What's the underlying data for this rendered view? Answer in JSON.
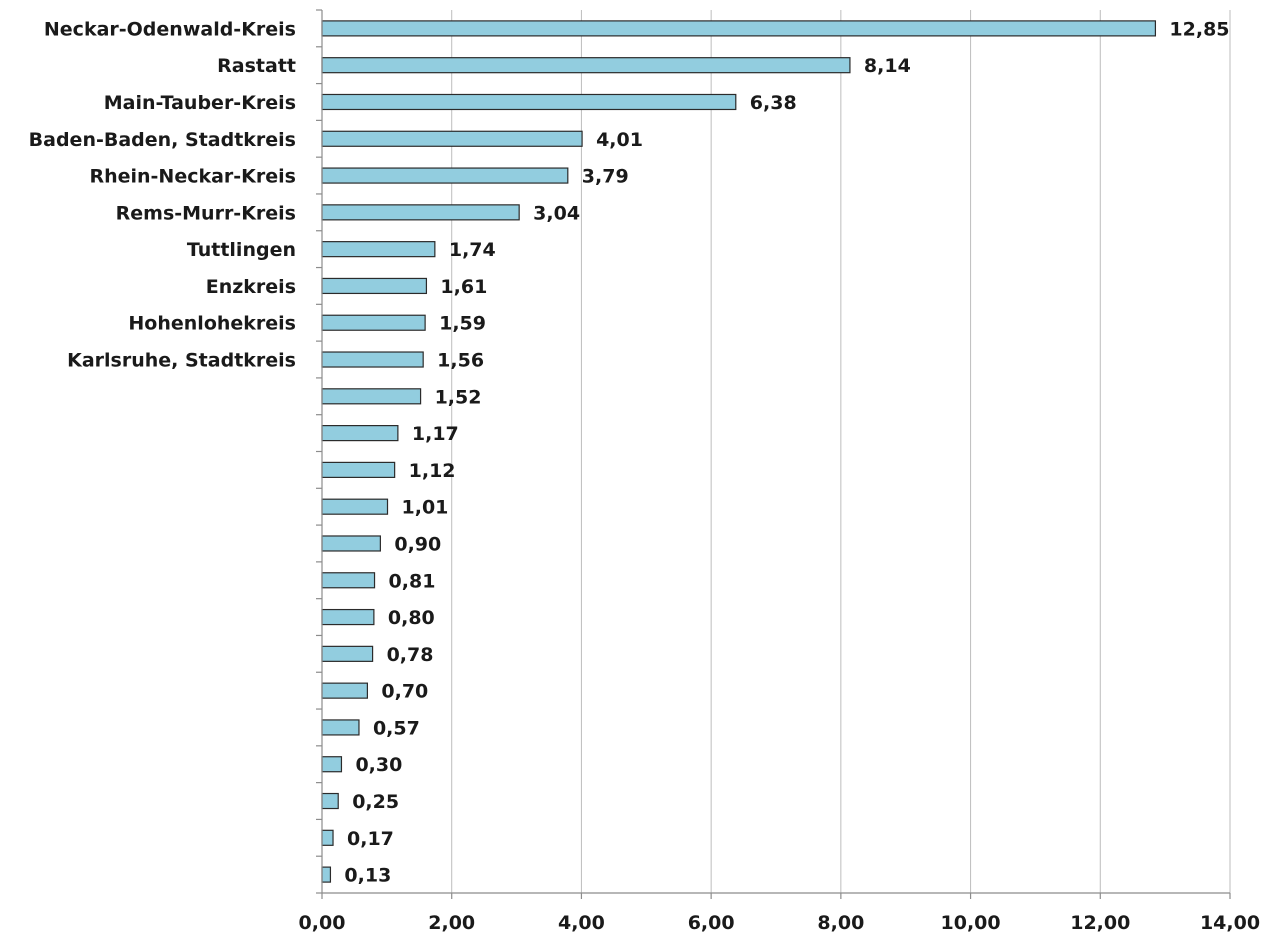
{
  "chart_data": {
    "type": "bar",
    "orientation": "horizontal",
    "categories": [
      "Neckar-Odenwald-Kreis",
      "Rastatt",
      "Main-Tauber-Kreis",
      "Baden-Baden, Stadtkreis",
      "Rhein-Neckar-Kreis",
      "Rems-Murr-Kreis",
      "Tuttlingen",
      "Enzkreis",
      "Hohenlohekreis",
      "Karlsruhe, Stadtkreis",
      "",
      "",
      "",
      "",
      "",
      "",
      "",
      "",
      "",
      "",
      "",
      "",
      "",
      ""
    ],
    "values": [
      12.85,
      8.14,
      6.38,
      4.01,
      3.79,
      3.04,
      1.74,
      1.61,
      1.59,
      1.56,
      1.52,
      1.17,
      1.12,
      1.01,
      0.9,
      0.81,
      0.8,
      0.78,
      0.7,
      0.57,
      0.3,
      0.25,
      0.17,
      0.13
    ],
    "value_labels": [
      "12,85",
      "8,14",
      "6,38",
      "4,01",
      "3,79",
      "3,04",
      "1,74",
      "1,61",
      "1,59",
      "1,56",
      "1,52",
      "1,17",
      "1,12",
      "1,01",
      "0,90",
      "0,81",
      "0,80",
      "0,78",
      "0,70",
      "0,57",
      "0,30",
      "0,25",
      "0,17",
      "0,13"
    ],
    "xlim": [
      0,
      14
    ],
    "x_ticks": [
      0,
      2,
      4,
      6,
      8,
      10,
      12,
      14
    ],
    "x_tick_labels": [
      "0,00",
      "2,00",
      "4,00",
      "6,00",
      "8,00",
      "10,00",
      "12,00",
      "14,00"
    ],
    "grid": true,
    "legend": "none",
    "colors": {
      "bar_fill": "#92cddf",
      "bar_stroke": "#2b2b2b"
    }
  }
}
